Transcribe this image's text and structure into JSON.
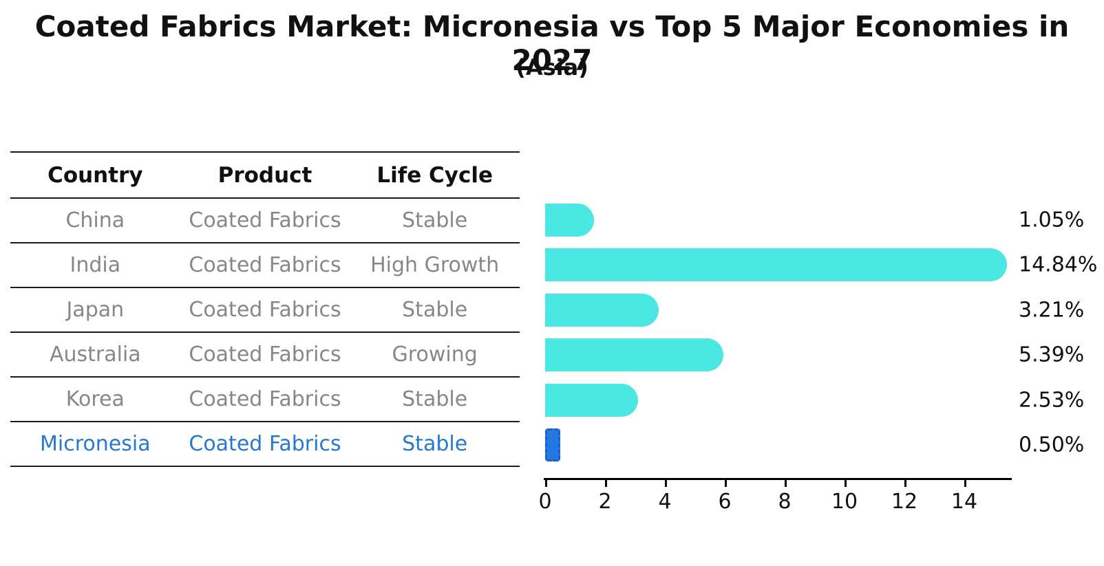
{
  "title": "Coated Fabrics Market: Micronesia vs Top 5 Major Economies in 2027",
  "subtitle": "(Asia)",
  "table": {
    "headers": [
      "Country",
      "Product",
      "Life Cycle"
    ],
    "rows": [
      {
        "country": "China",
        "product": "Coated Fabrics",
        "life_cycle": "Stable",
        "highlight": false
      },
      {
        "country": "India",
        "product": "Coated Fabrics",
        "life_cycle": "High Growth",
        "highlight": false
      },
      {
        "country": "Japan",
        "product": "Coated Fabrics",
        "life_cycle": "Stable",
        "highlight": false
      },
      {
        "country": "Australia",
        "product": "Coated Fabrics",
        "life_cycle": "Growing",
        "highlight": false
      },
      {
        "country": "Korea",
        "product": "Coated Fabrics",
        "life_cycle": "Stable",
        "highlight": false
      },
      {
        "country": "Micronesia",
        "product": "Coated Fabrics",
        "life_cycle": "Stable",
        "highlight": true
      }
    ]
  },
  "chart_data": {
    "type": "bar",
    "orientation": "horizontal",
    "title": "Coated Fabrics Market: Micronesia vs Top 5 Major Economies in 2027 (Asia)",
    "categories": [
      "China",
      "India",
      "Japan",
      "Australia",
      "Korea",
      "Micronesia"
    ],
    "values": [
      1.05,
      14.84,
      3.21,
      5.39,
      2.53,
      0.5
    ],
    "value_labels": [
      "1.05%",
      "14.84%",
      "3.21%",
      "5.39%",
      "2.53%",
      "0.50%"
    ],
    "xticks": [
      0,
      2,
      4,
      6,
      8,
      10,
      12,
      14
    ],
    "xlim": [
      0,
      15.6
    ],
    "xlabel": "",
    "ylabel": "",
    "grid": false,
    "legend": false,
    "highlight_index": 5
  },
  "colors": {
    "bar": "#4BE7E3",
    "highlight_fill": "#2478E4",
    "highlight_border": "#1A5FC6",
    "table_text": "#878787",
    "highlight_text": "#2679CF",
    "title_text": "#111111",
    "axis": "#000000"
  }
}
